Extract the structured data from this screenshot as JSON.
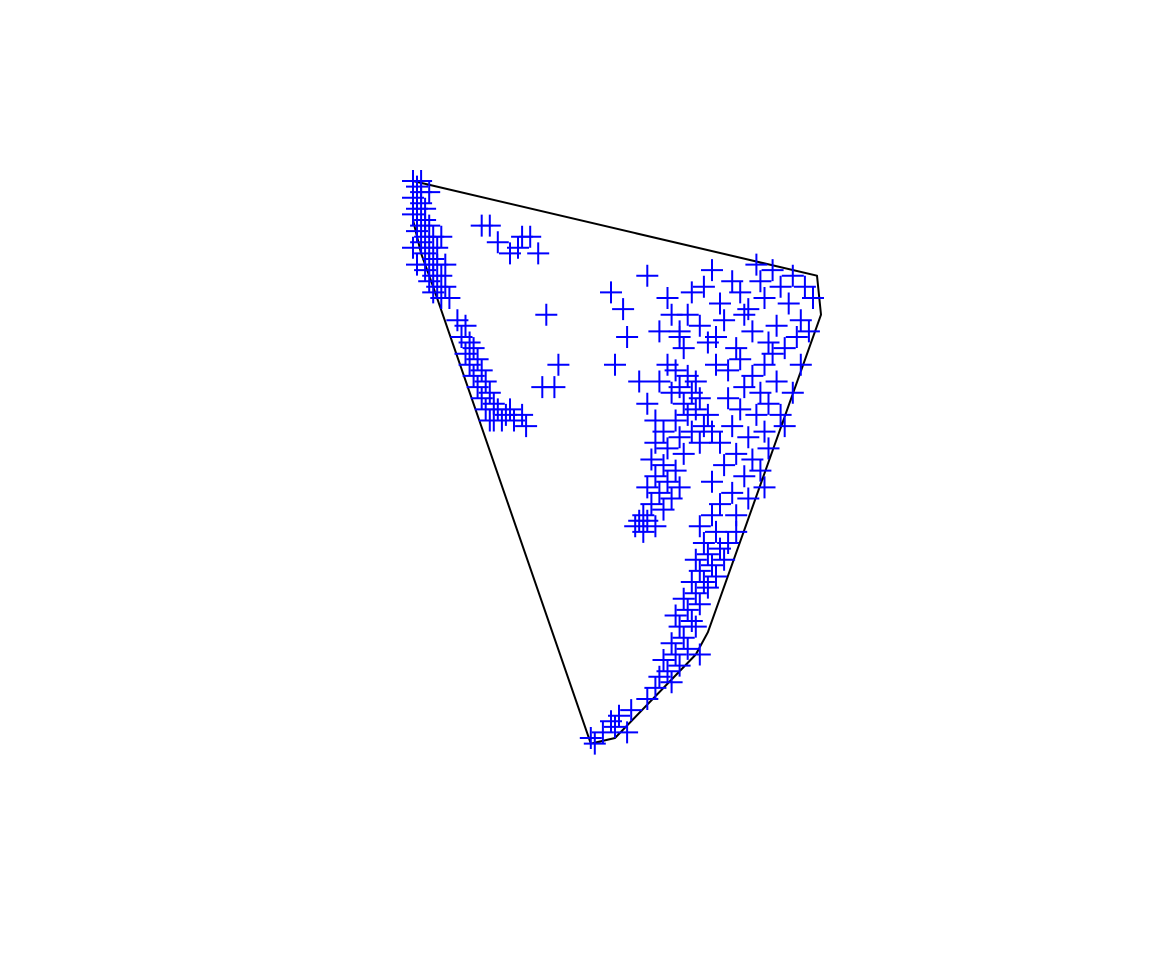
{
  "chart_data": {
    "type": "scatter",
    "title": "",
    "xlabel": "",
    "ylabel": "",
    "grid": false,
    "marker": "plus",
    "colors": {
      "points": "#0000ff",
      "hull": "#000000",
      "background": "#ffffff"
    },
    "hull": {
      "type": "polygon",
      "points": [
        [
          0.0,
          0.0
        ],
        [
          1.0,
          -0.17
        ],
        [
          1.01,
          -0.24
        ],
        [
          0.73,
          -0.81
        ],
        [
          0.7,
          -0.85
        ],
        [
          0.5,
          -1.0
        ],
        [
          0.44,
          -1.01
        ],
        [
          0.05,
          -0.19
        ],
        [
          0.02,
          -0.13
        ],
        [
          0.0,
          -0.07
        ]
      ]
    },
    "series": [
      {
        "points": [
          [
            0.0,
            0.0
          ],
          [
            0.01,
            -0.01
          ],
          [
            0.02,
            -0.02
          ],
          [
            0.0,
            -0.03
          ],
          [
            0.02,
            -0.04
          ],
          [
            0.01,
            -0.05
          ],
          [
            0.03,
            -0.05
          ],
          [
            0.0,
            -0.06
          ],
          [
            0.03,
            -0.07
          ],
          [
            0.02,
            -0.08
          ],
          [
            0.04,
            -0.08
          ],
          [
            0.01,
            -0.09
          ],
          [
            0.03,
            -0.1
          ],
          [
            0.05,
            -0.1
          ],
          [
            0.02,
            -0.11
          ],
          [
            0.04,
            -0.12
          ],
          [
            0.03,
            -0.13
          ],
          [
            0.05,
            -0.14
          ],
          [
            0.04,
            -0.15
          ],
          [
            0.06,
            -0.15
          ],
          [
            0.03,
            -0.16
          ],
          [
            0.05,
            -0.17
          ],
          [
            0.07,
            -0.17
          ],
          [
            0.04,
            -0.18
          ],
          [
            0.06,
            -0.19
          ],
          [
            0.08,
            -0.19
          ],
          [
            0.05,
            -0.2
          ],
          [
            0.07,
            -0.21
          ],
          [
            0.09,
            -0.21
          ],
          [
            0.02,
            -0.0
          ],
          [
            0.04,
            -0.02
          ],
          [
            0.0,
            -0.12
          ],
          [
            0.06,
            -0.12
          ],
          [
            0.08,
            -0.15
          ],
          [
            0.01,
            -0.15
          ],
          [
            0.07,
            -0.1
          ],
          [
            0.11,
            -0.25
          ],
          [
            0.13,
            -0.26
          ],
          [
            0.12,
            -0.28
          ],
          [
            0.14,
            -0.29
          ],
          [
            0.15,
            -0.3
          ],
          [
            0.13,
            -0.31
          ],
          [
            0.16,
            -0.32
          ],
          [
            0.14,
            -0.33
          ],
          [
            0.17,
            -0.34
          ],
          [
            0.15,
            -0.35
          ],
          [
            0.18,
            -0.36
          ],
          [
            0.16,
            -0.37
          ],
          [
            0.19,
            -0.38
          ],
          [
            0.17,
            -0.39
          ],
          [
            0.2,
            -0.4
          ],
          [
            0.18,
            -0.41
          ],
          [
            0.21,
            -0.41
          ],
          [
            0.23,
            -0.42
          ],
          [
            0.24,
            -0.41
          ],
          [
            0.22,
            -0.43
          ],
          [
            0.2,
            -0.43
          ],
          [
            0.25,
            -0.43
          ],
          [
            0.27,
            -0.42
          ],
          [
            0.28,
            -0.44
          ],
          [
            0.19,
            -0.43
          ],
          [
            0.17,
            -0.08
          ],
          [
            0.19,
            -0.08
          ],
          [
            0.21,
            -0.11
          ],
          [
            0.24,
            -0.13
          ],
          [
            0.27,
            -0.1
          ],
          [
            0.29,
            -0.1
          ],
          [
            0.31,
            -0.13
          ],
          [
            0.26,
            -0.12
          ],
          [
            0.33,
            -0.24
          ],
          [
            0.36,
            -0.33
          ],
          [
            0.35,
            -0.37
          ],
          [
            0.32,
            -0.37
          ],
          [
            0.49,
            -0.2
          ],
          [
            0.52,
            -0.23
          ],
          [
            0.58,
            -0.17
          ],
          [
            0.63,
            -0.21
          ],
          [
            0.68,
            -0.24
          ],
          [
            0.74,
            -0.16
          ],
          [
            0.79,
            -0.18
          ],
          [
            0.85,
            -0.15
          ],
          [
            0.89,
            -0.16
          ],
          [
            0.94,
            -0.17
          ],
          [
            0.97,
            -0.19
          ],
          [
            0.99,
            -0.21
          ],
          [
            0.91,
            -0.19
          ],
          [
            0.86,
            -0.18
          ],
          [
            0.81,
            -0.2
          ],
          [
            0.76,
            -0.22
          ],
          [
            0.71,
            -0.26
          ],
          [
            0.66,
            -0.28
          ],
          [
            0.61,
            -0.27
          ],
          [
            0.64,
            -0.24
          ],
          [
            0.69,
            -0.2
          ],
          [
            0.72,
            -0.19
          ],
          [
            0.77,
            -0.25
          ],
          [
            0.83,
            -0.23
          ],
          [
            0.87,
            -0.21
          ],
          [
            0.93,
            -0.22
          ],
          [
            0.96,
            -0.25
          ],
          [
            0.98,
            -0.27
          ],
          [
            0.95,
            -0.28
          ],
          [
            0.9,
            -0.26
          ],
          [
            0.84,
            -0.27
          ],
          [
            0.82,
            -0.24
          ],
          [
            0.75,
            -0.28
          ],
          [
            0.67,
            -0.3
          ],
          [
            0.66,
            -0.27
          ],
          [
            0.73,
            -0.29
          ],
          [
            0.8,
            -0.3
          ],
          [
            0.88,
            -0.29
          ],
          [
            0.92,
            -0.3
          ],
          [
            0.63,
            -0.33
          ],
          [
            0.65,
            -0.34
          ],
          [
            0.68,
            -0.35
          ],
          [
            0.7,
            -0.36
          ],
          [
            0.66,
            -0.37
          ],
          [
            0.69,
            -0.38
          ],
          [
            0.71,
            -0.39
          ],
          [
            0.64,
            -0.38
          ],
          [
            0.67,
            -0.4
          ],
          [
            0.7,
            -0.41
          ],
          [
            0.73,
            -0.42
          ],
          [
            0.68,
            -0.42
          ],
          [
            0.65,
            -0.43
          ],
          [
            0.72,
            -0.44
          ],
          [
            0.74,
            -0.45
          ],
          [
            0.69,
            -0.45
          ],
          [
            0.66,
            -0.46
          ],
          [
            0.62,
            -0.45
          ],
          [
            0.6,
            -0.47
          ],
          [
            0.63,
            -0.48
          ],
          [
            0.67,
            -0.49
          ],
          [
            0.71,
            -0.47
          ],
          [
            0.59,
            -0.5
          ],
          [
            0.62,
            -0.51
          ],
          [
            0.65,
            -0.52
          ],
          [
            0.6,
            -0.53
          ],
          [
            0.63,
            -0.54
          ],
          [
            0.66,
            -0.55
          ],
          [
            0.58,
            -0.55
          ],
          [
            0.61,
            -0.56
          ],
          [
            0.64,
            -0.57
          ],
          [
            0.59,
            -0.58
          ],
          [
            0.62,
            -0.59
          ],
          [
            0.57,
            -0.6
          ],
          [
            0.56,
            -0.61
          ],
          [
            0.58,
            -0.61
          ],
          [
            0.55,
            -0.62
          ],
          [
            0.6,
            -0.62
          ],
          [
            0.57,
            -0.63
          ],
          [
            0.75,
            -0.33
          ],
          [
            0.78,
            -0.34
          ],
          [
            0.81,
            -0.32
          ],
          [
            0.84,
            -0.35
          ],
          [
            0.87,
            -0.33
          ],
          [
            0.9,
            -0.36
          ],
          [
            0.86,
            -0.38
          ],
          [
            0.82,
            -0.37
          ],
          [
            0.78,
            -0.39
          ],
          [
            0.81,
            -0.41
          ],
          [
            0.85,
            -0.42
          ],
          [
            0.88,
            -0.4
          ],
          [
            0.91,
            -0.42
          ],
          [
            0.87,
            -0.45
          ],
          [
            0.83,
            -0.46
          ],
          [
            0.79,
            -0.44
          ],
          [
            0.76,
            -0.47
          ],
          [
            0.8,
            -0.49
          ],
          [
            0.84,
            -0.5
          ],
          [
            0.88,
            -0.48
          ],
          [
            0.86,
            -0.52
          ],
          [
            0.82,
            -0.53
          ],
          [
            0.77,
            -0.51
          ],
          [
            0.74,
            -0.54
          ],
          [
            0.79,
            -0.56
          ],
          [
            0.83,
            -0.57
          ],
          [
            0.87,
            -0.55
          ],
          [
            0.76,
            -0.58
          ],
          [
            0.8,
            -0.6
          ],
          [
            0.92,
            -0.44
          ],
          [
            0.94,
            -0.38
          ],
          [
            0.89,
            -0.31
          ],
          [
            0.96,
            -0.33
          ],
          [
            0.74,
            -0.6
          ],
          [
            0.71,
            -0.62
          ],
          [
            0.75,
            -0.63
          ],
          [
            0.72,
            -0.65
          ],
          [
            0.76,
            -0.66
          ],
          [
            0.73,
            -0.67
          ],
          [
            0.7,
            -0.68
          ],
          [
            0.74,
            -0.69
          ],
          [
            0.71,
            -0.7
          ],
          [
            0.75,
            -0.71
          ],
          [
            0.72,
            -0.72
          ],
          [
            0.69,
            -0.72
          ],
          [
            0.73,
            -0.73
          ],
          [
            0.77,
            -0.68
          ],
          [
            0.78,
            -0.65
          ],
          [
            0.8,
            -0.63
          ],
          [
            0.7,
            -0.74
          ],
          [
            0.67,
            -0.75
          ],
          [
            0.71,
            -0.76
          ],
          [
            0.68,
            -0.77
          ],
          [
            0.65,
            -0.78
          ],
          [
            0.69,
            -0.79
          ],
          [
            0.66,
            -0.8
          ],
          [
            0.7,
            -0.8
          ],
          [
            0.67,
            -0.82
          ],
          [
            0.64,
            -0.83
          ],
          [
            0.68,
            -0.84
          ],
          [
            0.65,
            -0.85
          ],
          [
            0.71,
            -0.85
          ],
          [
            0.62,
            -0.86
          ],
          [
            0.66,
            -0.87
          ],
          [
            0.63,
            -0.88
          ],
          [
            0.61,
            -0.89
          ],
          [
            0.64,
            -0.9
          ],
          [
            0.6,
            -0.91
          ],
          [
            0.58,
            -0.93
          ],
          [
            0.54,
            -0.95
          ],
          [
            0.51,
            -0.96
          ],
          [
            0.49,
            -0.97
          ],
          [
            0.47,
            -0.99
          ],
          [
            0.45,
            -1.01
          ],
          [
            0.44,
            -1.0
          ],
          [
            0.53,
            -0.99
          ],
          [
            0.5,
            -0.98
          ],
          [
            0.56,
            -0.36
          ],
          [
            0.5,
            -0.33
          ],
          [
            0.53,
            -0.28
          ],
          [
            0.6,
            -0.43
          ],
          [
            0.58,
            -0.4
          ],
          [
            0.61,
            -0.36
          ]
        ]
      }
    ]
  }
}
